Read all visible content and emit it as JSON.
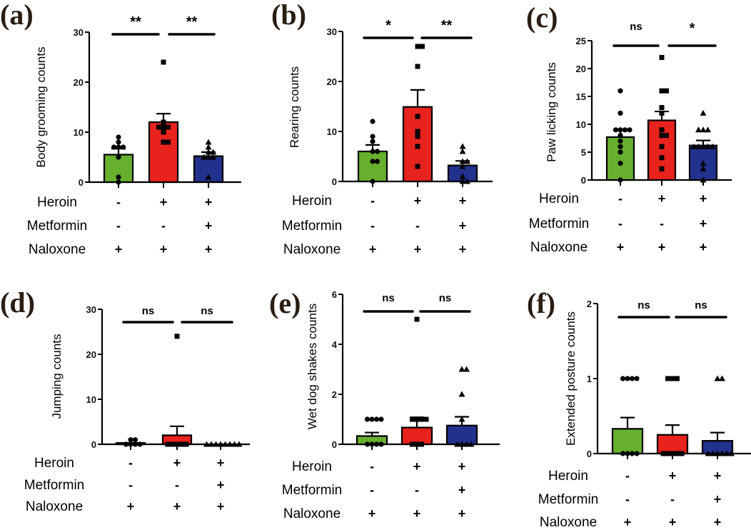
{
  "colors": {
    "group1": "#67b02e",
    "group2": "#e8221c",
    "group3": "#22318c",
    "axis": "#000000"
  },
  "treatment_rows": [
    "Heroin",
    "Metformin",
    "Naloxone"
  ],
  "groups": [
    {
      "Heroin": "-",
      "Metformin": "-",
      "Naloxone": "+"
    },
    {
      "Heroin": "+",
      "Metformin": "-",
      "Naloxone": "+"
    },
    {
      "Heroin": "+",
      "Metformin": "+",
      "Naloxone": "+"
    }
  ],
  "chart_data": [
    {
      "panel": "(a)",
      "type": "bar",
      "ylabel": "Body grooming counts",
      "ylim": [
        0,
        30
      ],
      "yticks": [
        0,
        10,
        20,
        30
      ],
      "marker": "circle/square/triangle",
      "means": [
        5.5,
        12.0,
        5.2
      ],
      "sem_upper": [
        6.7,
        13.7,
        6.0
      ],
      "points": [
        [
          9,
          7,
          7,
          8,
          7,
          5,
          1,
          0
        ],
        [
          24,
          12,
          11,
          11,
          10,
          11,
          8,
          8
        ],
        [
          8,
          7,
          6,
          6,
          5,
          5,
          5,
          1
        ]
      ],
      "significance": [
        "**",
        "**"
      ]
    },
    {
      "panel": "(b)",
      "type": "bar",
      "ylabel": "Rearing counts",
      "ylim": [
        0,
        30
      ],
      "yticks": [
        0,
        10,
        20,
        30
      ],
      "means": [
        6.0,
        14.9,
        3.2
      ],
      "sem_upper": [
        7.3,
        18.3,
        4.1
      ],
      "points": [
        [
          12,
          9,
          8,
          6,
          6,
          4,
          4,
          0
        ],
        [
          27,
          27,
          23,
          13,
          10,
          9,
          7,
          3
        ],
        [
          7,
          6,
          4,
          4,
          3,
          1,
          0,
          0
        ]
      ],
      "significance": [
        "*",
        "**"
      ]
    },
    {
      "panel": "(c)",
      "type": "bar",
      "ylabel": "Paw licking counts",
      "ylim": [
        0,
        25
      ],
      "yticks": [
        0,
        5,
        10,
        15,
        20,
        25
      ],
      "means": [
        7.7,
        10.7,
        6.2
      ],
      "sem_upper": [
        8.9,
        12.3,
        7.1
      ],
      "points": [
        [
          16,
          12,
          9,
          9,
          9,
          9,
          7,
          8,
          6,
          5,
          3,
          0
        ],
        [
          22,
          16,
          16,
          13,
          12,
          9,
          8,
          8,
          6,
          4,
          2
        ],
        [
          12,
          9,
          9,
          9,
          6,
          6,
          6,
          6,
          6,
          3,
          2,
          0
        ]
      ],
      "significance": [
        "ns",
        "*"
      ]
    },
    {
      "panel": "(d)",
      "type": "bar",
      "ylabel": "Jumping counts",
      "ylim": [
        0,
        30
      ],
      "yticks": [
        0,
        10,
        20,
        30
      ],
      "means": [
        0.3,
        2.0,
        0.0
      ],
      "sem_upper": [
        0.3,
        4.0,
        0.0
      ],
      "points": [
        [
          1,
          1,
          0,
          0,
          0,
          0
        ],
        [
          24,
          0,
          0,
          0,
          0,
          0
        ],
        [
          0,
          0,
          0,
          0,
          0,
          0,
          0,
          0
        ]
      ],
      "significance": [
        "ns",
        "ns"
      ]
    },
    {
      "panel": "(e)",
      "type": "bar",
      "ylabel": "Wet dog shakes counts",
      "ylim": [
        0,
        6
      ],
      "yticks": [
        0,
        2,
        4,
        6
      ],
      "means": [
        0.33,
        0.67,
        0.75
      ],
      "sem_upper": [
        0.47,
        1.08,
        1.1
      ],
      "points": [
        [
          1,
          1,
          1,
          1,
          0,
          0,
          0,
          0
        ],
        [
          5,
          1,
          1,
          1,
          1,
          0,
          0,
          0
        ],
        [
          3,
          3,
          2,
          1,
          0,
          0,
          0,
          0
        ]
      ],
      "significance": [
        "ns",
        "ns"
      ]
    },
    {
      "panel": "(f)",
      "type": "bar",
      "ylabel": "Extended posture counts",
      "ylim": [
        0,
        2
      ],
      "yticks": [
        0,
        1,
        2
      ],
      "means": [
        0.33,
        0.25,
        0.17
      ],
      "sem_upper": [
        0.48,
        0.38,
        0.28
      ],
      "points": [
        [
          1,
          1,
          1,
          1,
          0,
          0,
          0,
          0
        ],
        [
          1,
          1,
          1,
          0,
          0,
          0,
          0,
          0
        ],
        [
          1,
          1,
          0,
          0,
          0,
          0,
          0,
          0
        ]
      ],
      "significance": [
        "ns",
        "ns"
      ]
    }
  ]
}
